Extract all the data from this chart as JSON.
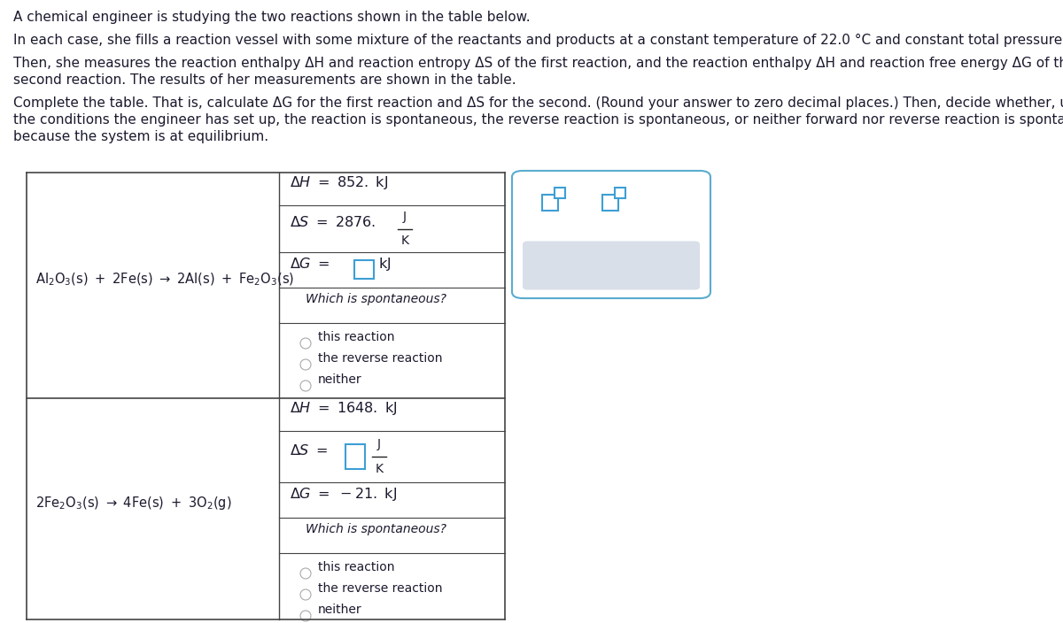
{
  "title": "A chemical engineer is studying the two reactions shown in the table below.",
  "para1": "In each case, she fills a reaction vessel with some mixture of the reactants and products at a constant temperature of 22.0 °C and constant total pressure.",
  "para2a": "Then, she measures the reaction enthalpy ΔH and reaction entropy ΔS of the first reaction, and the reaction enthalpy ΔH and reaction free energy ΔG of the",
  "para2b": "second reaction. The results of her measurements are shown in the table.",
  "para3a": "Complete the table. That is, calculate ΔG for the first reaction and ΔS for the second. (Round your answer to zero decimal places.) Then, decide whether, under",
  "para3b": "the conditions the engineer has set up, the reaction is spontaneous, the reverse reaction is spontaneous, or neither forward nor reverse reaction is spontaneous",
  "para3c": "because the system is at equilibrium.",
  "rxn1_eq": "Al₂O₃(s) + 2Fe(s) → 2Al(s) + Fe₂O₃(s)",
  "rxn2_eq": "2Fe₂O₃(s) → 4Fe(s) + 3O₂(g)",
  "rxn1_dH": "ΔH = 852. kJ",
  "rxn1_dS_pre": "ΔS = 2876.",
  "rxn1_dG_pre": "ΔG = ",
  "rxn1_dG_post": " kJ",
  "rxn2_dH": "ΔH = 1648. kJ",
  "rxn2_dS_pre": "ΔS = ",
  "rxn2_dG": "ΔG = −21. kJ",
  "whichq": "Which is spontaneous?",
  "opt1": "this reaction",
  "opt2": "the reverse reaction",
  "opt3": "neither",
  "frac_J": "J",
  "frac_K": "K",
  "bg": "#ffffff",
  "text_color": "#1a1a2e",
  "border_color": "#444444",
  "input_border": "#3d9fd4",
  "popup_border": "#5aaccf",
  "radio_color": "#aaaaaa",
  "popup_bar_bg": "#d8dfe8"
}
